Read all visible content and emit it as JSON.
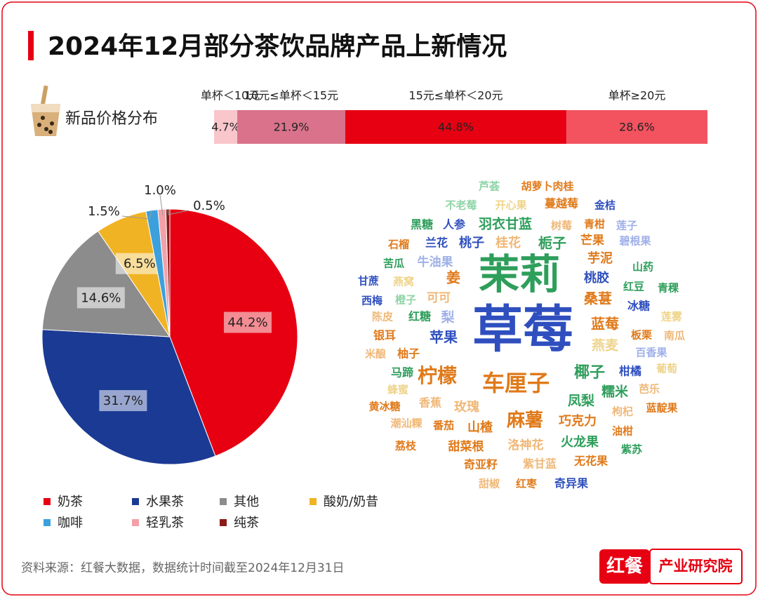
{
  "title": "2024年12月部分茶饮品牌产品上新情况",
  "chart_data": [
    {
      "type": "stacked-bar",
      "title": "新品价格分布",
      "xlim": [
        0,
        100
      ],
      "series": [
        {
          "name": "单杯＜10元",
          "color": "#f9c6cb",
          "values": [
            4.7
          ],
          "value_labels": [
            "4.7%"
          ]
        },
        {
          "name": "10元≤单杯＜15元",
          "color": "#d9728a",
          "values": [
            21.9
          ],
          "value_labels": [
            "21.9%"
          ]
        },
        {
          "name": "15元≤单杯＜20元",
          "color": "#e60012",
          "values": [
            44.8
          ],
          "value_labels": [
            "44.8%"
          ]
        },
        {
          "name": "单杯≥20元",
          "color": "#f2535f",
          "values": [
            28.6
          ],
          "value_labels": [
            "28.6%"
          ]
        }
      ]
    },
    {
      "type": "pie",
      "categories": [
        "奶茶",
        "水果茶",
        "其他",
        "酸奶/奶昔",
        "咖啡",
        "轻乳茶",
        "纯茶"
      ],
      "values": [
        44.2,
        31.7,
        14.6,
        6.5,
        1.5,
        1.0,
        0.5
      ],
      "value_labels": [
        "44.2%",
        "31.7%",
        "14.6%",
        "6.5%",
        "1.5%",
        "1.0%",
        "0.5%"
      ],
      "colors": [
        "#e60012",
        "#1b3a94",
        "#8c8c8c",
        "#f0b323",
        "#3ca0dc",
        "#f4a0a8",
        "#8b1a1a"
      ]
    },
    {
      "type": "wordcloud",
      "words": [
        "芦荟",
        "胡萝卜肉桂",
        "不老莓",
        "开心果",
        "蔓越莓",
        "金桔",
        "黑糖",
        "人参",
        "羽衣甘蓝",
        "树莓",
        "青柑",
        "莲子",
        "石榴",
        "兰花",
        "桃子",
        "桂花",
        "栀子",
        "芒果",
        "碧根果",
        "芋泥",
        "苦瓜",
        "牛油果",
        "茉莉",
        "山药",
        "甘蔗",
        "燕窝",
        "姜",
        "桃胶",
        "红豆",
        "青稞",
        "西梅",
        "橙子",
        "可可",
        "桑葚",
        "冰糖",
        "陈皮",
        "红糖",
        "梨",
        "草莓",
        "莲雾",
        "蓝莓",
        "板栗",
        "南瓜",
        "银耳",
        "苹果",
        "燕麦",
        "百香果",
        "米酿",
        "柚子",
        "马蹄",
        "柠檬",
        "车厘子",
        "椰子",
        "柑橘",
        "葡萄",
        "糯米",
        "蜂蜜",
        "黄冰糖",
        "香蕉",
        "凤梨",
        "芭乐",
        "玫瑰",
        "枸杞",
        "蓝靛果",
        "麻薯",
        "巧克力",
        "潮汕粿",
        "番茄",
        "山楂",
        "油柑",
        "荔枝",
        "甜菜根",
        "洛神花",
        "火龙果",
        "紫苏",
        "奇亚籽",
        "紫甘蓝",
        "无花果",
        "甜椒",
        "红枣",
        "奇异果"
      ]
    }
  ],
  "source": "资料来源：红餐大数据，数据统计时间截至2024年12月31日",
  "logo": {
    "brand": "红餐",
    "name": "产业研究院"
  }
}
